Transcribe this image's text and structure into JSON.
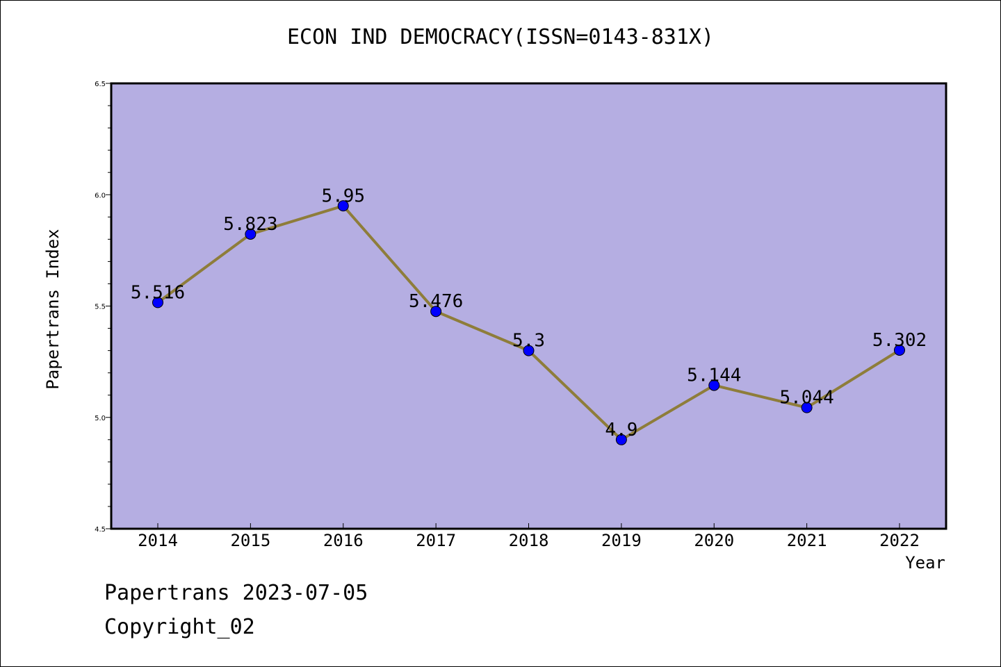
{
  "chart_data": {
    "type": "line",
    "title": "ECON IND DEMOCRACY(ISSN=0143-831X)",
    "xlabel": "Year",
    "ylabel": "Papertrans Index",
    "categories": [
      "2014",
      "2015",
      "2016",
      "2017",
      "2018",
      "2019",
      "2020",
      "2021",
      "2022"
    ],
    "series": [
      {
        "values": [
          5.516,
          5.823,
          5.95,
          5.476,
          5.3,
          4.9,
          5.144,
          5.044,
          5.302
        ],
        "labels": [
          "5.516",
          "5.823",
          "5.95",
          "5.476",
          "5.3",
          "4.9",
          "5.144",
          "5.044",
          "5.302"
        ]
      }
    ],
    "ylim": [
      4.5,
      6.5
    ],
    "yticks": [
      "4.5",
      "5.0",
      "5.5",
      "6.0",
      "6.5"
    ],
    "grid": false,
    "colors": {
      "plot_background": "#b5aee2",
      "line": "#8e7d3a",
      "marker": "#0000ff"
    }
  },
  "footer": {
    "date_text": "Papertrans 2023-07-05",
    "copyright_text": "Copyright_02"
  }
}
